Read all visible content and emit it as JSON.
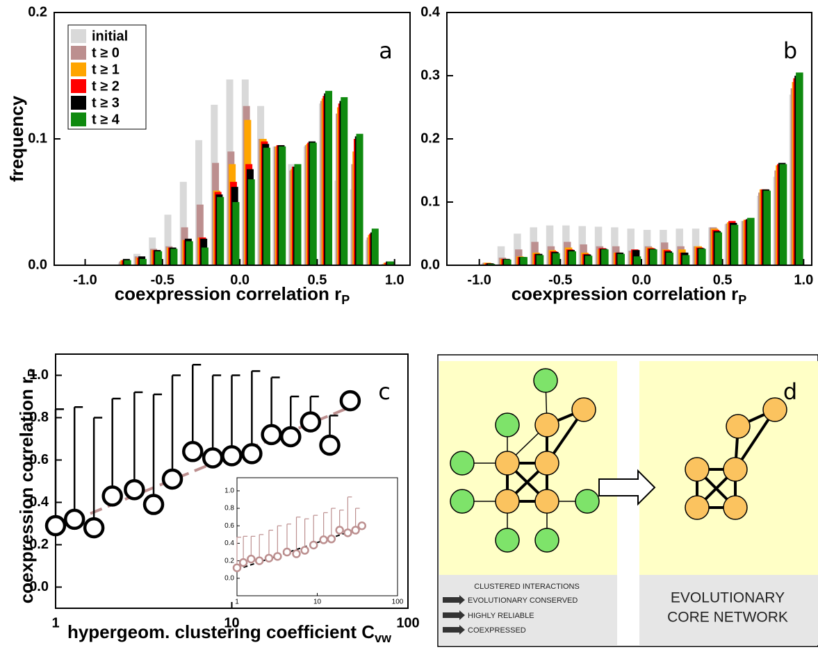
{
  "chart_data": [
    {
      "type": "histogram",
      "annotation": "a",
      "ylabel": "frequency",
      "xlabel": "coexpression correlation r",
      "xlabel_sub": "P",
      "bins": [
        -1.0,
        -0.9,
        -0.8,
        -0.7,
        -0.6,
        -0.5,
        -0.4,
        -0.3,
        -0.2,
        -0.1,
        0.0,
        0.1,
        0.2,
        0.3,
        0.4,
        0.5,
        0.6,
        0.7,
        0.8,
        0.9,
        1.0
      ],
      "series": [
        {
          "name": "initial",
          "color": "#d9d9d9",
          "values": [
            0,
            0,
            0.002,
            0.009,
            0.022,
            0.04,
            0.066,
            0.099,
            0.127,
            0.147,
            0.147,
            0.126,
            0.094,
            0.08,
            0.094,
            0.128,
            0.067,
            0.06,
            0.02,
            0.001
          ]
        },
        {
          "name": "t ≥ 0",
          "color": "#bc8f8f",
          "values": [
            0,
            0,
            0.003,
            0.007,
            0.013,
            0.015,
            0.03,
            0.048,
            0.081,
            0.09,
            0.126,
            0.1,
            0.094,
            0.075,
            0.095,
            0.13,
            0.12,
            0.08,
            0.022,
            0.001
          ]
        },
        {
          "name": "t ≥ 1",
          "color": "#ffa500",
          "values": [
            0,
            0,
            0.004,
            0.006,
            0.012,
            0.014,
            0.02,
            0.022,
            0.059,
            0.08,
            0.115,
            0.1,
            0.094,
            0.076,
            0.096,
            0.132,
            0.125,
            0.09,
            0.024,
            0.002
          ]
        },
        {
          "name": "t ≥ 2",
          "color": "#ff0000",
          "values": [
            0,
            0,
            0.004,
            0.006,
            0.012,
            0.014,
            0.02,
            0.022,
            0.058,
            0.066,
            0.08,
            0.098,
            0.095,
            0.078,
            0.097,
            0.134,
            0.128,
            0.1,
            0.025,
            0.002
          ]
        },
        {
          "name": "t ≥ 3",
          "color": "#000000",
          "values": [
            0,
            0,
            0.005,
            0.007,
            0.012,
            0.014,
            0.021,
            0.021,
            0.056,
            0.062,
            0.076,
            0.096,
            0.095,
            0.078,
            0.098,
            0.136,
            0.13,
            0.102,
            0.026,
            0.003
          ]
        },
        {
          "name": "t ≥ 4",
          "color": "#0f8a0f",
          "values": [
            0,
            0,
            0.004,
            0.005,
            0.011,
            0.013,
            0.019,
            0.014,
            0.054,
            0.05,
            0.068,
            0.093,
            0.094,
            0.08,
            0.097,
            0.138,
            0.133,
            0.104,
            0.029,
            0.003
          ]
        }
      ],
      "xlim": [
        -1.2,
        1.1
      ],
      "ylim": [
        0,
        0.2
      ],
      "xticks": [
        {
          "value": -1,
          "label": "-1.0"
        },
        -0.5,
        {
          "value": 0,
          "label": "0.0"
        },
        0.5,
        {
          "value": 1,
          "label": "1.0"
        }
      ],
      "yticks": [
        {
          "value": 0,
          "label": "0.0"
        },
        0.1,
        0.2
      ],
      "legend": "upper left"
    },
    {
      "type": "histogram",
      "annotation": "b",
      "xlabel": "coexpression correlation r",
      "xlabel_sub": "P",
      "bins": [
        -1.0,
        -0.9,
        -0.8,
        -0.7,
        -0.6,
        -0.5,
        -0.4,
        -0.3,
        -0.2,
        -0.1,
        0.0,
        0.1,
        0.2,
        0.3,
        0.4,
        0.5,
        0.6,
        0.7,
        0.8,
        0.9,
        1.0
      ],
      "series": [
        {
          "color": "#d9d9d9",
          "values": [
            0.003,
            0.03,
            0.05,
            0.06,
            0.063,
            0.063,
            0.062,
            0.061,
            0.06,
            0.058,
            0.056,
            0.056,
            0.058,
            0.058,
            0.06,
            0.065,
            0.07,
            0.11,
            0.14,
            0.27
          ]
        },
        {
          "color": "#bc8f8f",
          "values": [
            0.004,
            0.012,
            0.025,
            0.037,
            0.03,
            0.037,
            0.033,
            0.03,
            0.03,
            0.023,
            0.03,
            0.036,
            0.03,
            0.03,
            0.06,
            0.066,
            0.07,
            0.115,
            0.15,
            0.28
          ]
        },
        {
          "color": "#ffa500",
          "values": [
            0.004,
            0.01,
            0.014,
            0.02,
            0.024,
            0.028,
            0.02,
            0.025,
            0.02,
            0.02,
            0.028,
            0.025,
            0.025,
            0.03,
            0.058,
            0.068,
            0.072,
            0.12,
            0.158,
            0.29
          ]
        },
        {
          "color": "#ff0000",
          "values": [
            0.003,
            0.01,
            0.013,
            0.018,
            0.022,
            0.025,
            0.018,
            0.027,
            0.02,
            0.025,
            0.027,
            0.024,
            0.02,
            0.028,
            0.056,
            0.07,
            0.072,
            0.12,
            0.16,
            0.296
          ]
        },
        {
          "color": "#000000",
          "values": [
            0.003,
            0.01,
            0.013,
            0.018,
            0.021,
            0.024,
            0.017,
            0.026,
            0.02,
            0.024,
            0.026,
            0.022,
            0.02,
            0.027,
            0.054,
            0.067,
            0.073,
            0.12,
            0.162,
            0.3
          ]
        },
        {
          "color": "#0f8a0f",
          "values": [
            0.002,
            0.009,
            0.013,
            0.016,
            0.019,
            0.022,
            0.015,
            0.025,
            0.018,
            0.014,
            0.025,
            0.02,
            0.016,
            0.026,
            0.052,
            0.064,
            0.075,
            0.118,
            0.16,
            0.305
          ]
        }
      ],
      "xlim": [
        -1.2,
        1.05
      ],
      "ylim": [
        0,
        0.4
      ],
      "xticks": [
        {
          "value": -1,
          "label": "-1.0"
        },
        -0.5,
        {
          "value": 0,
          "label": "0.0"
        },
        0.5,
        {
          "value": 1,
          "label": "1.0"
        }
      ],
      "yticks": [
        {
          "value": 0,
          "label": "0.0"
        },
        0.1,
        0.2,
        0.3,
        0.4
      ],
      "legend": "none"
    },
    {
      "type": "scatter",
      "annotation": "c",
      "xlabel": "hypergeom. clustering coefficient C",
      "xlabel_sub": "vw",
      "ylabel": "coexpression correlation r",
      "ylabel_sub": "P",
      "log_x": true,
      "color": "#000000",
      "x": [
        1,
        1.28,
        1.65,
        2.1,
        2.8,
        3.6,
        4.6,
        6.0,
        7.8,
        10,
        13,
        16.8,
        21.6,
        28,
        36,
        47
      ],
      "values": [
        0.29,
        0.32,
        0.28,
        0.43,
        0.46,
        0.39,
        0.51,
        0.64,
        0.61,
        0.62,
        0.63,
        0.72,
        0.71,
        0.78,
        0.67,
        0.88
      ],
      "yerr": [
        0.55,
        0.53,
        0.52,
        0.46,
        0.46,
        0.52,
        0.49,
        0.41,
        0.39,
        0.38,
        0.39,
        0.27,
        0.19,
        0.12,
        0.14,
        null
      ],
      "fit": {
        "color": "#bc8f8f",
        "x": [
          1,
          47
        ],
        "y": [
          0.28,
          0.85
        ]
      },
      "xlim": [
        1,
        100
      ],
      "ylim": [
        -0.1,
        1.1
      ],
      "xticks": [
        1,
        10,
        100
      ],
      "yticks": [
        {
          "value": 0,
          "label": "0.0"
        },
        0.2,
        0.4,
        0.6,
        0.8,
        {
          "value": 1,
          "label": "1.0"
        }
      ],
      "inset": {
        "type": "scatter",
        "log_x": true,
        "color": "#bc8f8f",
        "x": [
          1,
          1.2,
          1.5,
          1.9,
          2.5,
          3.2,
          4.2,
          5.5,
          7,
          9,
          12,
          15,
          19,
          24,
          30,
          36
        ],
        "values": [
          0.12,
          0.18,
          0.22,
          0.2,
          0.23,
          0.25,
          0.3,
          0.28,
          0.32,
          0.38,
          0.44,
          0.45,
          0.55,
          0.52,
          0.55,
          0.6
        ],
        "yerr": [
          0.35,
          0.3,
          0.26,
          0.3,
          0.32,
          0.35,
          0.32,
          0.42,
          0.36,
          0.34,
          0.31,
          0.35,
          0.23,
          0.41,
          0.25,
          null
        ],
        "fit": {
          "color": "#000000",
          "x": [
            1,
            36
          ],
          "y": [
            0.1,
            0.58
          ]
        },
        "xlim": [
          1,
          100
        ],
        "ylim": [
          -0.2,
          1.15
        ],
        "xticks": [
          1,
          10,
          100
        ],
        "yticks": [
          {
            "value": 0,
            "label": "0.0"
          },
          0.2,
          0.4,
          0.6,
          0.8,
          {
            "value": 1,
            "label": "1.0"
          }
        ]
      }
    }
  ],
  "diagram": {
    "label": "d",
    "left_box": {
      "title": "CLUSTERED INTERACTIONS",
      "items": [
        "EVOLUTIONARY CONSERVED",
        "HIGHLY RELIABLE",
        "COEXPRESSED"
      ]
    },
    "right_box": {
      "lines": [
        "EVOLUTIONARY",
        "CORE NETWORK"
      ]
    }
  }
}
